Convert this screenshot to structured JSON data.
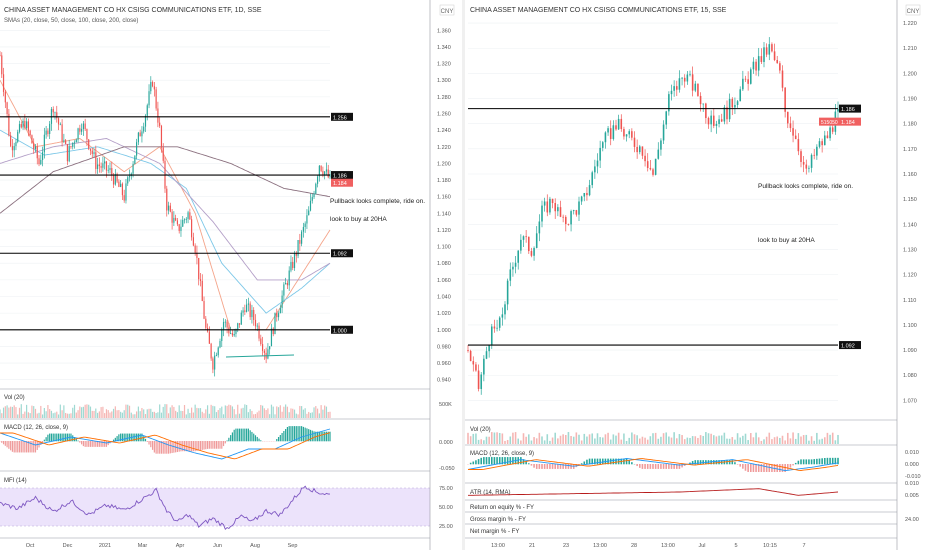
{
  "colors": {
    "up": "#26a69a",
    "down": "#ef5350",
    "hline": "#000000",
    "grid": "#eef0f3",
    "sep": "#9598a1",
    "axis_text": "#555555",
    "sma20": "#f4a48a",
    "sma50": "#7ec8e8",
    "sma100": "#b4a0c8",
    "sma200": "#8a6f7e",
    "mfi_band": "#ece3fb",
    "price_tag": "#f06060",
    "level_tag": "#111111"
  },
  "left_chart": {
    "title": "CHINA ASSET MANAGEMENT CO HX CSISG COMMUNICATIONS ETF, 1D, SSE",
    "currency": "CNY",
    "sma_label": "SMAs (20, close, 50, close, 100, close, 200, close)",
    "price_ticks": [
      "1.360",
      "1.340",
      "1.320",
      "1.300",
      "1.280",
      "1.260",
      "1.240",
      "1.220",
      "1.200",
      "1.180",
      "1.160",
      "1.140",
      "1.120",
      "1.100",
      "1.080",
      "1.060",
      "1.040",
      "1.020",
      "1.000",
      "0.980",
      "0.960",
      "0.940"
    ],
    "x_ticks": [
      "Oct",
      "Dec",
      "2021",
      "Mar",
      "Apr",
      "Jun",
      "Aug",
      "Sep"
    ],
    "levels": [
      "1.256",
      "1.186",
      "1.092",
      "1.000"
    ],
    "last_price": "1.184",
    "annotations": [
      "Pullback looks complete, ride on.",
      "look to buy at 20HA"
    ],
    "vol_label": "Vol (20)",
    "vol_tick": "500K",
    "macd_label": "MACD (12, 26, close, 9)",
    "macd_ticks": [
      "0.000",
      "-0.050"
    ],
    "mfi_label": "MFI (14)",
    "mfi_ticks": [
      "75.00",
      "50.00",
      "25.00"
    ]
  },
  "right_chart": {
    "title": "CHINA ASSET MANAGEMENT CO HX CSISG COMMUNICATIONS ETF, 15, SSE",
    "currency": "CNY",
    "price_ticks": [
      "1.220",
      "1.210",
      "1.200",
      "1.190",
      "1.180",
      "1.170",
      "1.160",
      "1.150",
      "1.140",
      "1.130",
      "1.120",
      "1.110",
      "1.100",
      "1.090",
      "1.080",
      "1.070"
    ],
    "x_ticks": [
      "13:00",
      "21",
      "23",
      "13:00",
      "28",
      "13:00",
      "Jul",
      "5",
      "10:15",
      "7"
    ],
    "levels": [
      "1.186",
      "1.092"
    ],
    "last_price": "1.184",
    "countdown": "515050",
    "annotations": [
      "Pullback looks complete, ride on.",
      "look to buy at 20HA"
    ],
    "vol_label": "Vol (20)",
    "macd_label": "MACD (12, 26, close, 9)",
    "macd_ticks": [
      "0.010",
      "0.000",
      "-0.010"
    ],
    "atr_label": "ATR (14, RMA)",
    "atr_ticks": [
      "0.010",
      "0.005"
    ],
    "fund_rows": [
      {
        "label": "Return on equity % - FY",
        "value": ""
      },
      {
        "label": "Gross margin % - FY",
        "value": "24.00"
      },
      {
        "label": "Net margin % - FY",
        "value": ""
      }
    ]
  },
  "chart_data": [
    {
      "type": "candlestick",
      "title": "CHINA ASSET MANAGEMENT CO HX CSISG COMMUNICATIONS ETF, 1D, SSE",
      "ylim": [
        0.93,
        1.37
      ],
      "x_ticks": [
        "Oct",
        "Dec",
        "2021",
        "Mar",
        "Apr",
        "Jun",
        "Aug",
        "Sep"
      ],
      "price_path": [
        [
          0,
          1.33
        ],
        [
          6,
          1.22
        ],
        [
          14,
          1.25
        ],
        [
          22,
          1.2
        ],
        [
          30,
          1.27
        ],
        [
          38,
          1.21
        ],
        [
          46,
          1.25
        ],
        [
          54,
          1.2
        ],
        [
          62,
          1.19
        ],
        [
          70,
          1.16
        ],
        [
          78,
          1.23
        ],
        [
          82,
          1.26
        ],
        [
          86,
          1.3
        ],
        [
          90,
          1.24
        ],
        [
          94,
          1.15
        ],
        [
          100,
          1.12
        ],
        [
          106,
          1.14
        ],
        [
          110,
          1.1
        ],
        [
          116,
          1.0
        ],
        [
          120,
          0.96
        ],
        [
          126,
          1.01
        ],
        [
          132,
          0.99
        ],
        [
          138,
          1.03
        ],
        [
          144,
          1.01
        ],
        [
          150,
          0.97
        ],
        [
          156,
          1.02
        ],
        [
          162,
          1.06
        ],
        [
          168,
          1.1
        ],
        [
          174,
          1.14
        ],
        [
          180,
          1.2
        ],
        [
          186,
          1.18
        ]
      ],
      "sma20": [
        [
          0,
          1.3
        ],
        [
          20,
          1.22
        ],
        [
          45,
          1.23
        ],
        [
          70,
          1.19
        ],
        [
          90,
          1.22
        ],
        [
          110,
          1.14
        ],
        [
          130,
          1.0
        ],
        [
          150,
          1.0
        ],
        [
          165,
          1.05
        ],
        [
          186,
          1.12
        ]
      ],
      "sma50": [
        [
          0,
          1.24
        ],
        [
          25,
          1.21
        ],
        [
          55,
          1.22
        ],
        [
          85,
          1.2
        ],
        [
          105,
          1.17
        ],
        [
          125,
          1.08
        ],
        [
          150,
          1.02
        ],
        [
          170,
          1.05
        ],
        [
          186,
          1.08
        ]
      ],
      "sma100": [
        [
          0,
          1.2
        ],
        [
          30,
          1.22
        ],
        [
          60,
          1.23
        ],
        [
          90,
          1.2
        ],
        [
          120,
          1.13
        ],
        [
          145,
          1.06
        ],
        [
          170,
          1.06
        ],
        [
          186,
          1.08
        ]
      ],
      "sma200": [
        [
          0,
          1.14
        ],
        [
          30,
          1.19
        ],
        [
          70,
          1.22
        ],
        [
          100,
          1.22
        ],
        [
          130,
          1.2
        ],
        [
          160,
          1.17
        ],
        [
          186,
          1.16
        ]
      ],
      "levels": [
        1.256,
        1.186,
        1.092,
        1.0
      ],
      "last_price": 1.184,
      "mfi_path": [
        [
          0,
          55
        ],
        [
          10,
          48
        ],
        [
          20,
          62
        ],
        [
          30,
          44
        ],
        [
          40,
          58
        ],
        [
          50,
          40
        ],
        [
          60,
          52
        ],
        [
          70,
          46
        ],
        [
          80,
          60
        ],
        [
          88,
          72
        ],
        [
          94,
          45
        ],
        [
          100,
          30
        ],
        [
          106,
          40
        ],
        [
          112,
          25
        ],
        [
          120,
          35
        ],
        [
          128,
          22
        ],
        [
          136,
          38
        ],
        [
          142,
          30
        ],
        [
          150,
          45
        ],
        [
          158,
          40
        ],
        [
          166,
          62
        ],
        [
          172,
          78
        ],
        [
          178,
          70
        ],
        [
          186,
          66
        ]
      ],
      "macd_path": [
        [
          0,
          0.02
        ],
        [
          20,
          -0.01
        ],
        [
          40,
          0.01
        ],
        [
          60,
          -0.005
        ],
        [
          80,
          0.015
        ],
        [
          95,
          -0.01
        ],
        [
          110,
          -0.03
        ],
        [
          125,
          -0.045
        ],
        [
          140,
          -0.02
        ],
        [
          155,
          -0.02
        ],
        [
          170,
          0.01
        ],
        [
          186,
          0.03
        ]
      ]
    },
    {
      "type": "candlestick",
      "title": "CHINA ASSET MANAGEMENT CO HX CSISG COMMUNICATIONS ETF, 15, SSE",
      "ylim": [
        1.063,
        1.226
      ],
      "x_ticks": [
        "13:00",
        "21",
        "23",
        "13:00",
        "28",
        "13:00",
        "Jul",
        "5",
        "10:15",
        "7"
      ],
      "price_path": [
        [
          0,
          1.09
        ],
        [
          4,
          1.075
        ],
        [
          8,
          1.095
        ],
        [
          12,
          1.1
        ],
        [
          16,
          1.12
        ],
        [
          20,
          1.135
        ],
        [
          24,
          1.13
        ],
        [
          28,
          1.145
        ],
        [
          32,
          1.15
        ],
        [
          36,
          1.14
        ],
        [
          40,
          1.145
        ],
        [
          44,
          1.15
        ],
        [
          50,
          1.17
        ],
        [
          56,
          1.18
        ],
        [
          60,
          1.175
        ],
        [
          66,
          1.17
        ],
        [
          70,
          1.16
        ],
        [
          76,
          1.19
        ],
        [
          82,
          1.2
        ],
        [
          88,
          1.19
        ],
        [
          92,
          1.18
        ],
        [
          98,
          1.185
        ],
        [
          104,
          1.195
        ],
        [
          110,
          1.205
        ],
        [
          114,
          1.21
        ],
        [
          118,
          1.2
        ],
        [
          120,
          1.185
        ],
        [
          124,
          1.175
        ],
        [
          128,
          1.16
        ],
        [
          132,
          1.17
        ],
        [
          136,
          1.175
        ],
        [
          140,
          1.184
        ]
      ],
      "levels": [
        1.186,
        1.092
      ],
      "last_price": 1.184,
      "macd_path": [
        [
          0,
          -0.005
        ],
        [
          20,
          0.004
        ],
        [
          40,
          -0.002
        ],
        [
          60,
          0.005
        ],
        [
          80,
          -0.001
        ],
        [
          100,
          0.004
        ],
        [
          120,
          -0.006
        ],
        [
          130,
          -0.003
        ],
        [
          140,
          0.001
        ]
      ],
      "atr_path": [
        [
          0,
          0.0045
        ],
        [
          40,
          0.005
        ],
        [
          80,
          0.0055
        ],
        [
          110,
          0.0065
        ],
        [
          125,
          0.0045
        ],
        [
          140,
          0.0055
        ]
      ]
    }
  ]
}
